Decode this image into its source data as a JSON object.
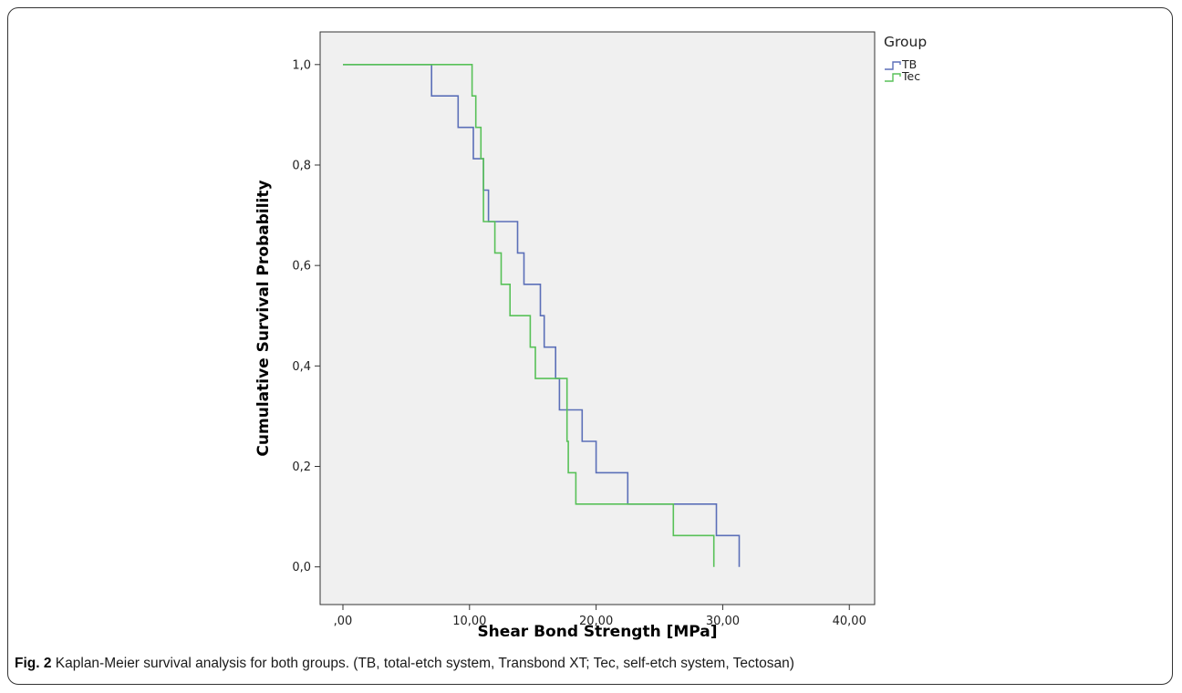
{
  "caption": {
    "label": "Fig. 2",
    "text": " Kaplan-Meier survival analysis for both groups. (TB, total-etch system, Transbond XT; Tec, self-etch system, Tectosan)"
  },
  "chart_data": {
    "type": "line",
    "step": true,
    "title": "",
    "xlabel": "Shear Bond Strength [MPa]",
    "ylabel": "Cumulative Survival Probability",
    "xlim": [
      -1.8,
      42.0
    ],
    "ylim": [
      -0.075,
      1.065
    ],
    "x_ticks": [
      0,
      10,
      20,
      30,
      40
    ],
    "x_tick_labels": [
      ",00",
      "10,00",
      "20,00",
      "30,00",
      "40,00"
    ],
    "y_ticks": [
      0.0,
      0.2,
      0.4,
      0.6,
      0.8,
      1.0
    ],
    "y_tick_labels": [
      "0,0",
      "0,2",
      "0,4",
      "0,6",
      "0,8",
      "1,0"
    ],
    "grid": false,
    "plot_background": "#f0f0f0",
    "legend": {
      "title": "Group",
      "position": "top-right-outside"
    },
    "series": [
      {
        "name": "TB",
        "color": "#5b6fb8",
        "x": [
          0,
          7.0,
          9.1,
          10.3,
          11.1,
          11.5,
          13.8,
          14.3,
          15.6,
          15.9,
          16.8,
          17.1,
          18.9,
          20.0,
          22.5,
          29.5,
          31.3
        ],
        "y": [
          1.0,
          0.9375,
          0.875,
          0.8125,
          0.75,
          0.6875,
          0.625,
          0.5625,
          0.5,
          0.4375,
          0.375,
          0.3125,
          0.25,
          0.1875,
          0.125,
          0.0625,
          0.0
        ]
      },
      {
        "name": "Tec",
        "color": "#58c158",
        "x": [
          0,
          10.2,
          10.5,
          10.9,
          11.1,
          12.0,
          12.5,
          13.2,
          14.8,
          15.2,
          17.7,
          17.8,
          18.0,
          18.4,
          26.1,
          29.3
        ],
        "y": [
          1.0,
          0.9375,
          0.875,
          0.8125,
          0.6875,
          0.625,
          0.5625,
          0.5,
          0.4375,
          0.375,
          0.25,
          0.1875,
          0.1875,
          0.125,
          0.0625,
          0.0
        ]
      }
    ]
  }
}
